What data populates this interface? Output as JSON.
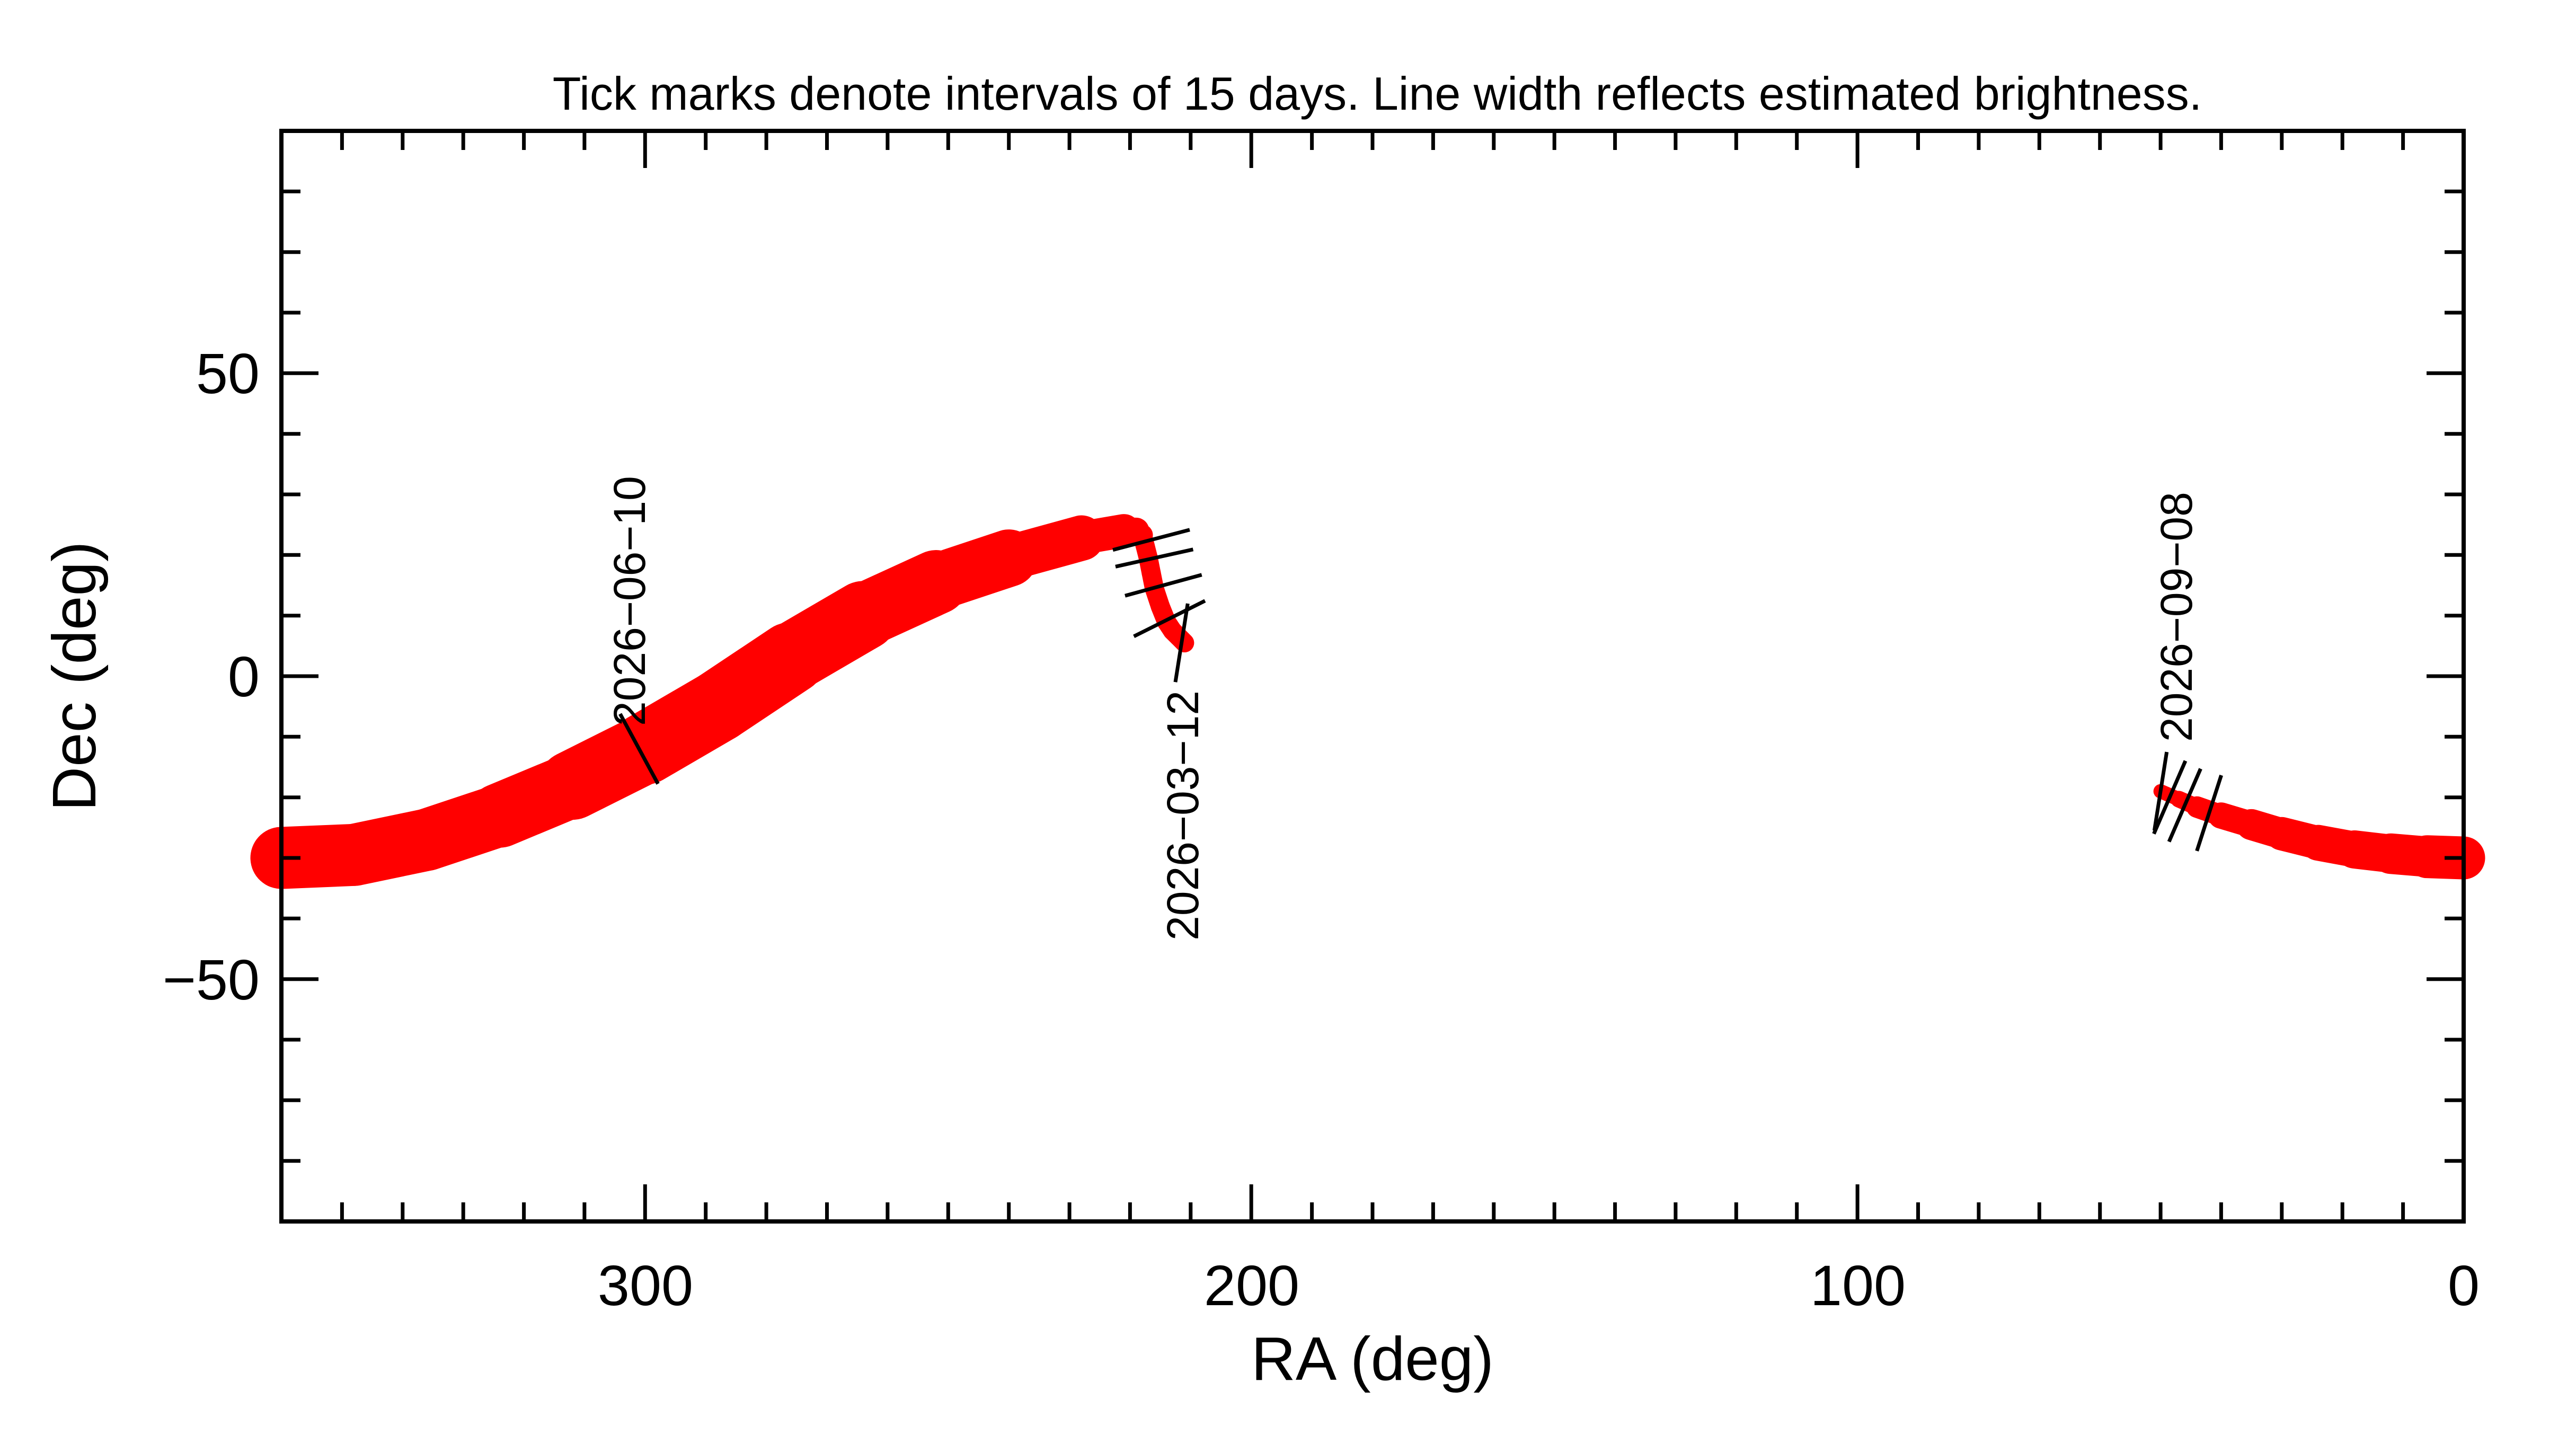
{
  "chart_data": {
    "type": "line",
    "title": "Tick marks denote intervals of 15 days.  Line width reflects estimated brightness.",
    "xlabel": "RA (deg)",
    "ylabel": "Dec (deg)",
    "xlim": [
      360,
      0
    ],
    "ylim": [
      -90,
      90
    ],
    "x_ticks": [
      300,
      200,
      100,
      0
    ],
    "y_ticks": [
      50,
      0,
      -50
    ],
    "y_tick_labels": [
      "50",
      "0",
      "−50"
    ],
    "grid": false,
    "colors": {
      "track": "#ff0000",
      "axes": "#000000"
    },
    "series": [
      {
        "x": [
          360,
          348,
          336,
          324,
          312,
          300,
          288,
          276,
          264,
          252,
          240,
          228,
          221,
          219,
          218,
          217.5,
          217,
          216.5,
          216,
          215,
          214,
          213,
          212,
          211
        ],
        "y": [
          -30,
          -29.5,
          -27,
          -23,
          -18,
          -12,
          -5,
          3,
          10,
          15.5,
          19.5,
          22.8,
          24,
          24,
          23.3,
          21.5,
          19.5,
          17,
          14.5,
          11.5,
          9,
          7.5,
          6.5,
          5.5
        ],
        "width": [
          13,
          13,
          13,
          13,
          14,
          15,
          15,
          15,
          14,
          13,
          11,
          8,
          6,
          5,
          4,
          4,
          4,
          4,
          4,
          4,
          4,
          4,
          4,
          4
        ]
      },
      {
        "x": [
          50,
          47,
          44,
          40,
          35,
          30,
          24,
          18,
          12,
          6,
          0
        ],
        "y": [
          -19,
          -20.3,
          -21.6,
          -23,
          -24.5,
          -26,
          -27.5,
          -28.6,
          -29.3,
          -29.8,
          -30
        ],
        "width": [
          3,
          3,
          4,
          5,
          6,
          7,
          7,
          8,
          8,
          9,
          9
        ]
      }
    ],
    "date_ticks": [
      {
        "ra": 301,
        "dec": -12
      },
      {
        "ra": 216.5,
        "dec": 22.5
      },
      {
        "ra": 216,
        "dec": 19.5
      },
      {
        "ra": 214.5,
        "dec": 15
      },
      {
        "ra": 213.5,
        "dec": 9.5
      },
      {
        "ra": 211.5,
        "dec": 5.5
      },
      {
        "ra": 50,
        "dec": -19
      },
      {
        "ra": 48.5,
        "dec": -20
      },
      {
        "ra": 46,
        "dec": -21.3
      },
      {
        "ra": 42,
        "dec": -22.6
      }
    ],
    "annotations": [
      {
        "text": "2026−06−10"
      },
      {
        "text": "2026−03−12"
      },
      {
        "text": "2026−09−08"
      }
    ]
  }
}
